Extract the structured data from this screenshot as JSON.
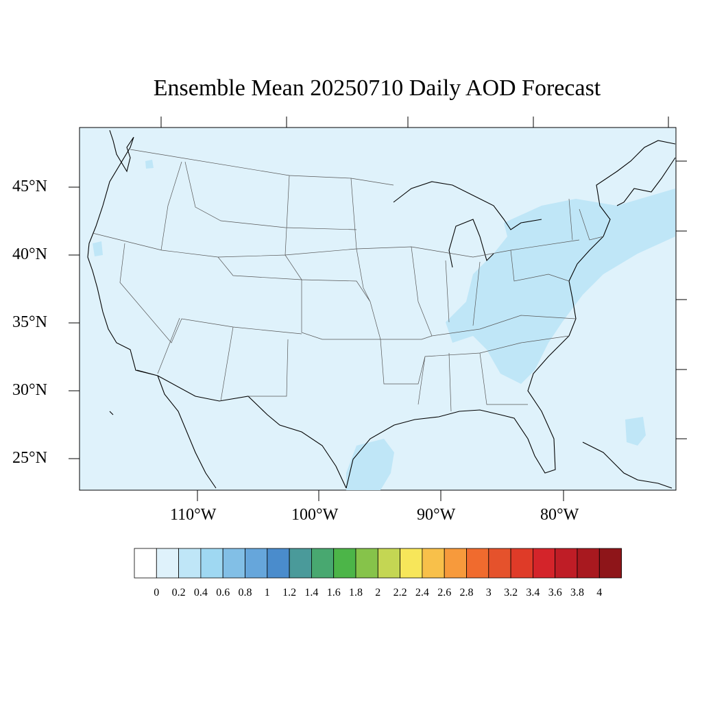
{
  "title": "Ensemble Mean 20250710 Daily AOD Forecast",
  "lat_labels": [
    "45°N",
    "40°N",
    "35°N",
    "30°N",
    "25°N"
  ],
  "lon_labels": [
    "110°W",
    "100°W",
    "90°W",
    "80°W"
  ],
  "colorbar": {
    "labels": [
      "0",
      "0.2",
      "0.4",
      "0.6",
      "0.8",
      "1",
      "1.2",
      "1.4",
      "1.6",
      "1.8",
      "2",
      "2.2",
      "2.4",
      "2.6",
      "2.8",
      "3",
      "3.2",
      "3.4",
      "3.6",
      "3.8",
      "4"
    ],
    "colors": [
      "#ffffff",
      "#dff2fb",
      "#bfe6f7",
      "#9fd8f2",
      "#82bfe6",
      "#66a6db",
      "#4a8ccc",
      "#4a9a9a",
      "#48a870",
      "#4cb548",
      "#86c34a",
      "#c4d653",
      "#f7e65a",
      "#f8c04a",
      "#f79a3c",
      "#f06b2e",
      "#e5522c",
      "#df3b28",
      "#d4242a",
      "#bf1d26",
      "#a8191f",
      "#8e1519"
    ]
  },
  "map": {
    "background_color": "#dff2fb",
    "plume_color": "#bfe6f7",
    "coastline_color": "#000000",
    "state_line_color": "#555555"
  }
}
